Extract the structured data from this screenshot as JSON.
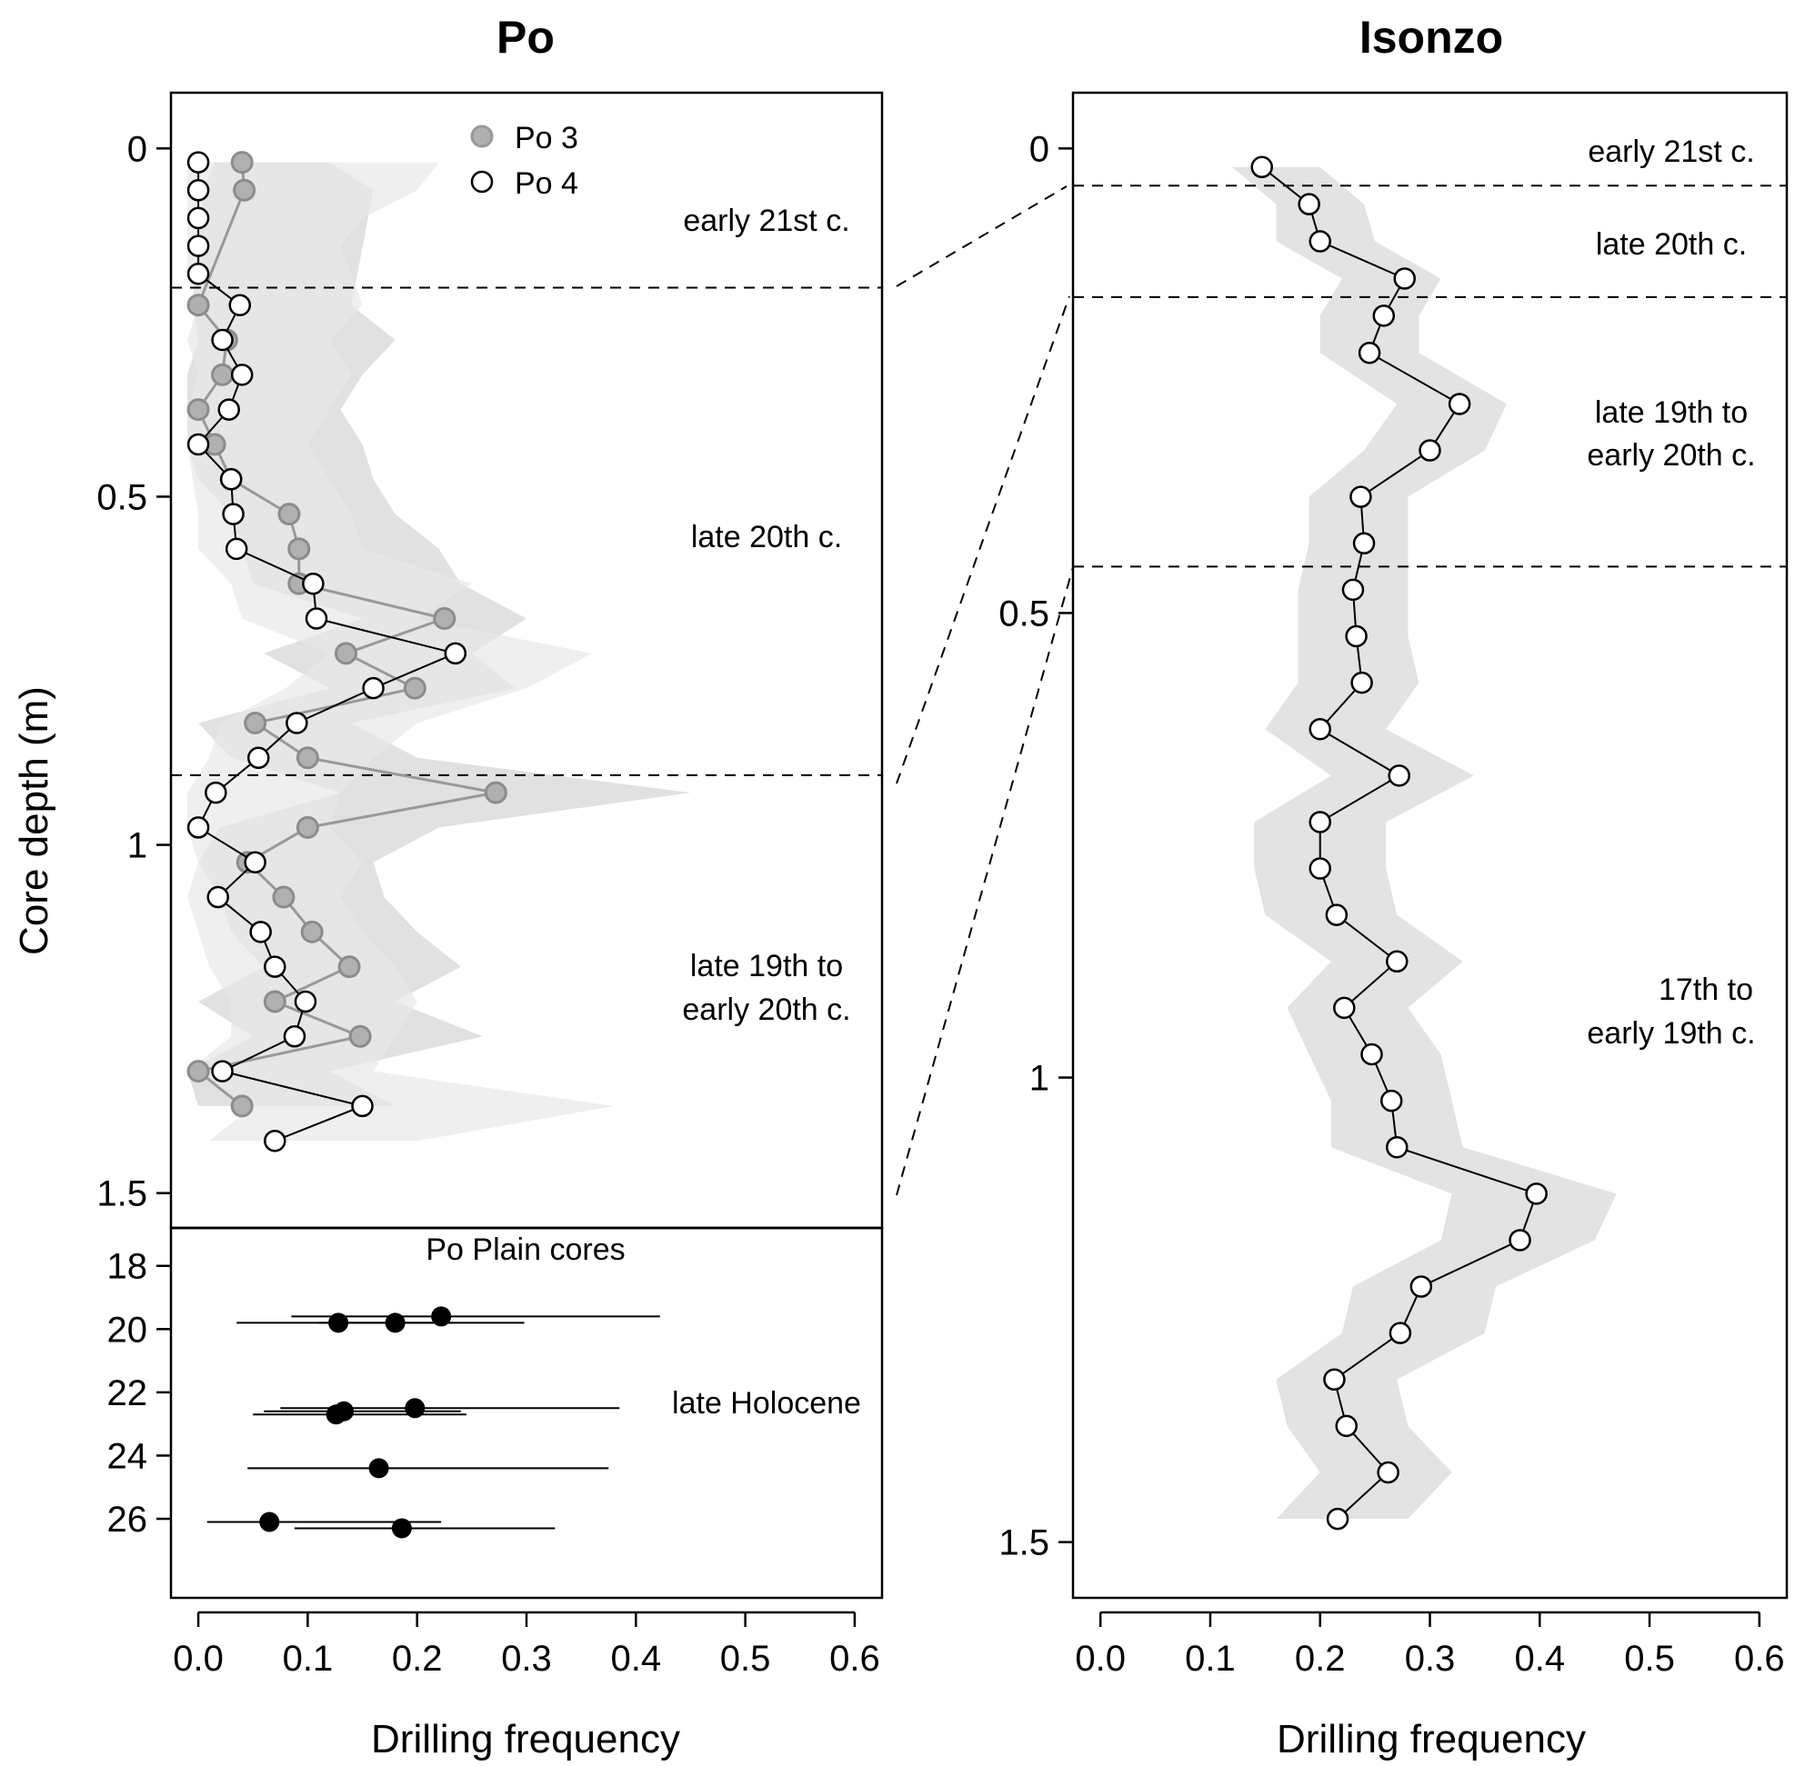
{
  "chart_data": [
    {
      "panel": "Po",
      "type": "line",
      "title": "Po",
      "xlabel": "Drilling frequency",
      "ylabel": "Core depth (m)",
      "xlim": [
        -0.025,
        0.625
      ],
      "ylim": [
        1.55,
        -0.08
      ],
      "x_ticks": [
        "0.0",
        "0.1",
        "0.2",
        "0.3",
        "0.4",
        "0.5",
        "0.6"
      ],
      "y_ticks": [
        "0",
        "0.5",
        "1",
        "1.5"
      ],
      "legend": {
        "position": "top-center",
        "entries": [
          "Po 3",
          "Po 4"
        ]
      },
      "annotations": [
        "early 21st c.",
        "late 20th c.",
        "late 19th to",
        "early 20th c."
      ],
      "boundaries_m": [
        0.2,
        0.9
      ],
      "series": [
        {
          "name": "Po 3",
          "color": "#999999",
          "points": [
            [
              0.04,
              0.02
            ],
            [
              0.042,
              0.06
            ],
            [
              0.0,
              0.225
            ],
            [
              0.026,
              0.275
            ],
            [
              0.022,
              0.325
            ],
            [
              0.0,
              0.375
            ],
            [
              0.015,
              0.425
            ],
            [
              0.03,
              0.475
            ],
            [
              0.083,
              0.525
            ],
            [
              0.092,
              0.575
            ],
            [
              0.092,
              0.625
            ],
            [
              0.225,
              0.675
            ],
            [
              0.135,
              0.725
            ],
            [
              0.198,
              0.775
            ],
            [
              0.052,
              0.825
            ],
            [
              0.1,
              0.875
            ],
            [
              0.272,
              0.925
            ],
            [
              0.1,
              0.975
            ],
            [
              0.045,
              1.025
            ],
            [
              0.078,
              1.075
            ],
            [
              0.104,
              1.125
            ],
            [
              0.138,
              1.175
            ],
            [
              0.07,
              1.225
            ],
            [
              0.148,
              1.275
            ],
            [
              0.0,
              1.325
            ],
            [
              0.04,
              1.375
            ]
          ],
          "band": [
            [
              0.015,
              0.12
            ],
            [
              0.005,
              0.16
            ],
            [
              -0.005,
              0.14
            ],
            [
              0.0,
              0.18
            ],
            [
              -0.01,
              0.15
            ],
            [
              -0.01,
              0.13
            ],
            [
              -0.01,
              0.15
            ],
            [
              0.0,
              0.16
            ],
            [
              0.03,
              0.18
            ],
            [
              0.04,
              0.22
            ],
            [
              0.05,
              0.24
            ],
            [
              0.15,
              0.3
            ],
            [
              0.06,
              0.25
            ],
            [
              0.12,
              0.29
            ],
            [
              0.0,
              0.14
            ],
            [
              0.03,
              0.2
            ],
            [
              0.13,
              0.45
            ],
            [
              0.02,
              0.22
            ],
            [
              0.0,
              0.16
            ],
            [
              0.02,
              0.17
            ],
            [
              0.03,
              0.2
            ],
            [
              0.06,
              0.24
            ],
            [
              0.0,
              0.18
            ],
            [
              0.05,
              0.26
            ],
            [
              -0.01,
              0.12
            ],
            [
              0.0,
              0.18
            ]
          ]
        },
        {
          "name": "Po 4",
          "color": "#000000",
          "points": [
            [
              0.0,
              0.02
            ],
            [
              0.0,
              0.06
            ],
            [
              0.0,
              0.1
            ],
            [
              0.0,
              0.14
            ],
            [
              0.0,
              0.18
            ],
            [
              0.038,
              0.225
            ],
            [
              0.022,
              0.275
            ],
            [
              0.04,
              0.325
            ],
            [
              0.028,
              0.375
            ],
            [
              0.0,
              0.425
            ],
            [
              0.03,
              0.475
            ],
            [
              0.032,
              0.525
            ],
            [
              0.035,
              0.575
            ],
            [
              0.105,
              0.625
            ],
            [
              0.108,
              0.675
            ],
            [
              0.235,
              0.725
            ],
            [
              0.16,
              0.775
            ],
            [
              0.09,
              0.825
            ],
            [
              0.055,
              0.875
            ],
            [
              0.016,
              0.925
            ],
            [
              0.0,
              0.975
            ],
            [
              0.052,
              1.025
            ],
            [
              0.018,
              1.075
            ],
            [
              0.057,
              1.125
            ],
            [
              0.07,
              1.175
            ],
            [
              0.098,
              1.225
            ],
            [
              0.088,
              1.275
            ],
            [
              0.022,
              1.325
            ],
            [
              0.15,
              1.375
            ],
            [
              0.07,
              1.425
            ]
          ],
          "band": [
            [
              -0.01,
              0.22
            ],
            [
              -0.01,
              0.2
            ],
            [
              -0.01,
              0.15
            ],
            [
              -0.01,
              0.13
            ],
            [
              -0.01,
              0.14
            ],
            [
              0.0,
              0.15
            ],
            [
              -0.01,
              0.12
            ],
            [
              0.0,
              0.14
            ],
            [
              -0.01,
              0.12
            ],
            [
              -0.01,
              0.1
            ],
            [
              -0.005,
              0.12
            ],
            [
              0.0,
              0.14
            ],
            [
              0.0,
              0.15
            ],
            [
              0.03,
              0.25
            ],
            [
              0.04,
              0.2
            ],
            [
              0.12,
              0.36
            ],
            [
              0.08,
              0.3
            ],
            [
              0.02,
              0.2
            ],
            [
              0.01,
              0.16
            ],
            [
              -0.01,
              0.13
            ],
            [
              -0.01,
              0.12
            ],
            [
              0.0,
              0.15
            ],
            [
              -0.01,
              0.13
            ],
            [
              0.0,
              0.15
            ],
            [
              0.01,
              0.18
            ],
            [
              0.03,
              0.2
            ],
            [
              0.03,
              0.18
            ],
            [
              -0.01,
              0.16
            ],
            [
              0.05,
              0.38
            ],
            [
              0.01,
              0.2
            ]
          ]
        }
      ]
    },
    {
      "panel": "Po Plain cores",
      "type": "scatter",
      "title": "Po Plain cores",
      "xlabel": "Drilling frequency",
      "ylim": [
        28.5,
        16.8
      ],
      "y_ticks": [
        "18",
        "20",
        "22",
        "24",
        "26"
      ],
      "annotation": "late Holocene",
      "points": [
        {
          "x": 0.222,
          "y": 19.6,
          "xmin": 0.085,
          "xmax": 0.422
        },
        {
          "x": 0.128,
          "y": 19.8,
          "xmin": 0.035,
          "xmax": 0.232
        },
        {
          "x": 0.18,
          "y": 19.8,
          "xmin": 0.11,
          "xmax": 0.298
        },
        {
          "x": 0.198,
          "y": 22.5,
          "xmin": 0.075,
          "xmax": 0.385
        },
        {
          "x": 0.133,
          "y": 22.6,
          "xmin": 0.06,
          "xmax": 0.24
        },
        {
          "x": 0.126,
          "y": 22.7,
          "xmin": 0.05,
          "xmax": 0.245
        },
        {
          "x": 0.165,
          "y": 24.4,
          "xmin": 0.045,
          "xmax": 0.375
        },
        {
          "x": 0.065,
          "y": 26.1,
          "xmin": 0.008,
          "xmax": 0.222
        },
        {
          "x": 0.186,
          "y": 26.3,
          "xmin": 0.088,
          "xmax": 0.326
        }
      ]
    },
    {
      "panel": "Isonzo",
      "type": "line",
      "title": "Isonzo",
      "xlabel": "Drilling frequency",
      "xlim": [
        -0.025,
        0.625
      ],
      "ylim": [
        1.56,
        -0.06
      ],
      "x_ticks": [
        "0.0",
        "0.1",
        "0.2",
        "0.3",
        "0.4",
        "0.5",
        "0.6"
      ],
      "y_ticks": [
        "0",
        "0.5",
        "1",
        "1.5"
      ],
      "annotations": [
        "early 21st c.",
        "late 20th c.",
        "late 19th to",
        "early 20th c.",
        "17th to",
        "early 19th c."
      ],
      "boundaries_m": [
        0.04,
        0.16,
        0.45
      ],
      "series": [
        {
          "name": "Isonzo",
          "color": "#000000",
          "points": [
            [
              0.147,
              0.02
            ],
            [
              0.19,
              0.06
            ],
            [
              0.2,
              0.1
            ],
            [
              0.277,
              0.14
            ],
            [
              0.258,
              0.18
            ],
            [
              0.245,
              0.22
            ],
            [
              0.327,
              0.275
            ],
            [
              0.3,
              0.325
            ],
            [
              0.237,
              0.375
            ],
            [
              0.24,
              0.425
            ],
            [
              0.23,
              0.475
            ],
            [
              0.233,
              0.525
            ],
            [
              0.238,
              0.575
            ],
            [
              0.2,
              0.625
            ],
            [
              0.272,
              0.675
            ],
            [
              0.2,
              0.725
            ],
            [
              0.2,
              0.775
            ],
            [
              0.215,
              0.825
            ],
            [
              0.27,
              0.875
            ],
            [
              0.222,
              0.925
            ],
            [
              0.247,
              0.975
            ],
            [
              0.265,
              1.025
            ],
            [
              0.27,
              1.075
            ],
            [
              0.397,
              1.125
            ],
            [
              0.382,
              1.175
            ],
            [
              0.292,
              1.225
            ],
            [
              0.273,
              1.275
            ],
            [
              0.213,
              1.325
            ],
            [
              0.224,
              1.375
            ],
            [
              0.262,
              1.425
            ],
            [
              0.216,
              1.475
            ]
          ],
          "band": [
            [
              0.12,
              0.2
            ],
            [
              0.16,
              0.24
            ],
            [
              0.16,
              0.25
            ],
            [
              0.22,
              0.31
            ],
            [
              0.2,
              0.29
            ],
            [
              0.2,
              0.29
            ],
            [
              0.27,
              0.37
            ],
            [
              0.24,
              0.35
            ],
            [
              0.19,
              0.28
            ],
            [
              0.19,
              0.28
            ],
            [
              0.18,
              0.28
            ],
            [
              0.18,
              0.28
            ],
            [
              0.18,
              0.29
            ],
            [
              0.15,
              0.26
            ],
            [
              0.21,
              0.34
            ],
            [
              0.14,
              0.26
            ],
            [
              0.14,
              0.26
            ],
            [
              0.15,
              0.27
            ],
            [
              0.21,
              0.33
            ],
            [
              0.17,
              0.28
            ],
            [
              0.19,
              0.31
            ],
            [
              0.21,
              0.32
            ],
            [
              0.21,
              0.33
            ],
            [
              0.32,
              0.47
            ],
            [
              0.31,
              0.45
            ],
            [
              0.23,
              0.36
            ],
            [
              0.22,
              0.35
            ],
            [
              0.16,
              0.27
            ],
            [
              0.17,
              0.28
            ],
            [
              0.2,
              0.32
            ],
            [
              0.16,
              0.28
            ]
          ]
        }
      ]
    }
  ]
}
